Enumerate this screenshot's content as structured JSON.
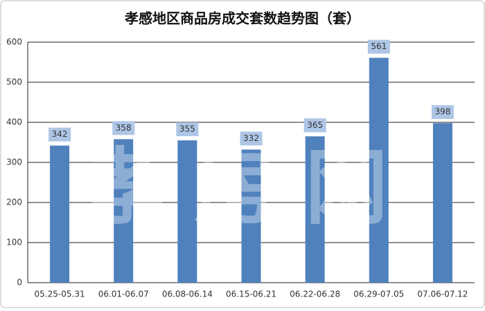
{
  "chart_data": {
    "type": "bar",
    "title": "孝感地区商品房成交套数趋势图（套）",
    "categories": [
      "05.25-05.31",
      "06.01-06.07",
      "06.08-06.14",
      "06.15-06.21",
      "06.22-06.28",
      "06.29-07.05",
      "07.06-07.12"
    ],
    "values": [
      342,
      358,
      355,
      332,
      365,
      561,
      398
    ],
    "color": "#4f81bd",
    "ylim": [
      0,
      600
    ],
    "yticks": [
      0,
      100,
      200,
      300,
      400,
      500,
      600
    ],
    "grid": true,
    "watermark": "孝房网"
  }
}
